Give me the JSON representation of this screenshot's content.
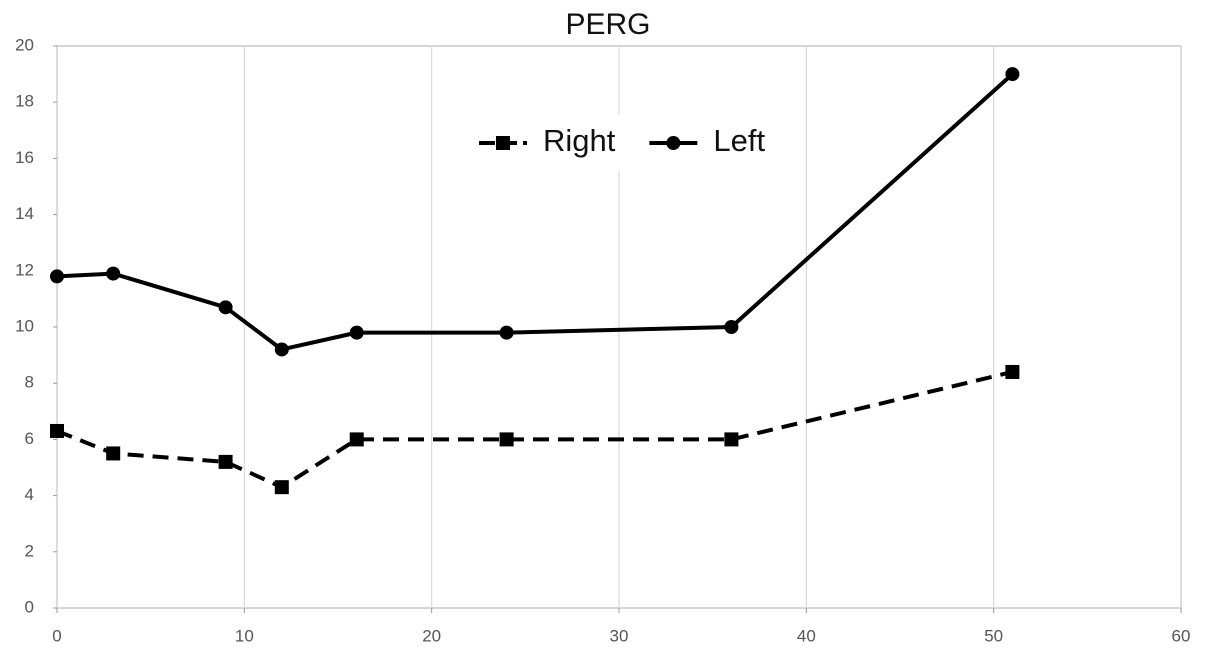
{
  "chart_data": {
    "type": "line",
    "title": "PERG",
    "series": [
      {
        "name": "Right",
        "color": "#000000",
        "style": "dashed",
        "marker": "square",
        "x": [
          0,
          3,
          9,
          12,
          16,
          24,
          36,
          51
        ],
        "values": [
          6.3,
          5.5,
          5.2,
          4.3,
          6.0,
          6.0,
          6.0,
          8.4
        ]
      },
      {
        "name": "Left",
        "color": "#000000",
        "style": "solid",
        "marker": "circle",
        "x": [
          0,
          3,
          9,
          12,
          16,
          24,
          36,
          51
        ],
        "values": [
          11.8,
          11.9,
          10.7,
          9.2,
          9.8,
          9.8,
          10.0,
          19.0
        ]
      }
    ],
    "xlim": [
      0,
      60
    ],
    "xticks": [
      0,
      10,
      20,
      30,
      40,
      50,
      60
    ],
    "ylim": [
      0,
      20
    ],
    "yticks": [
      0,
      2,
      4,
      6,
      8,
      10,
      12,
      14,
      16,
      18,
      20
    ],
    "grid": "x",
    "legend": "upper-center"
  }
}
